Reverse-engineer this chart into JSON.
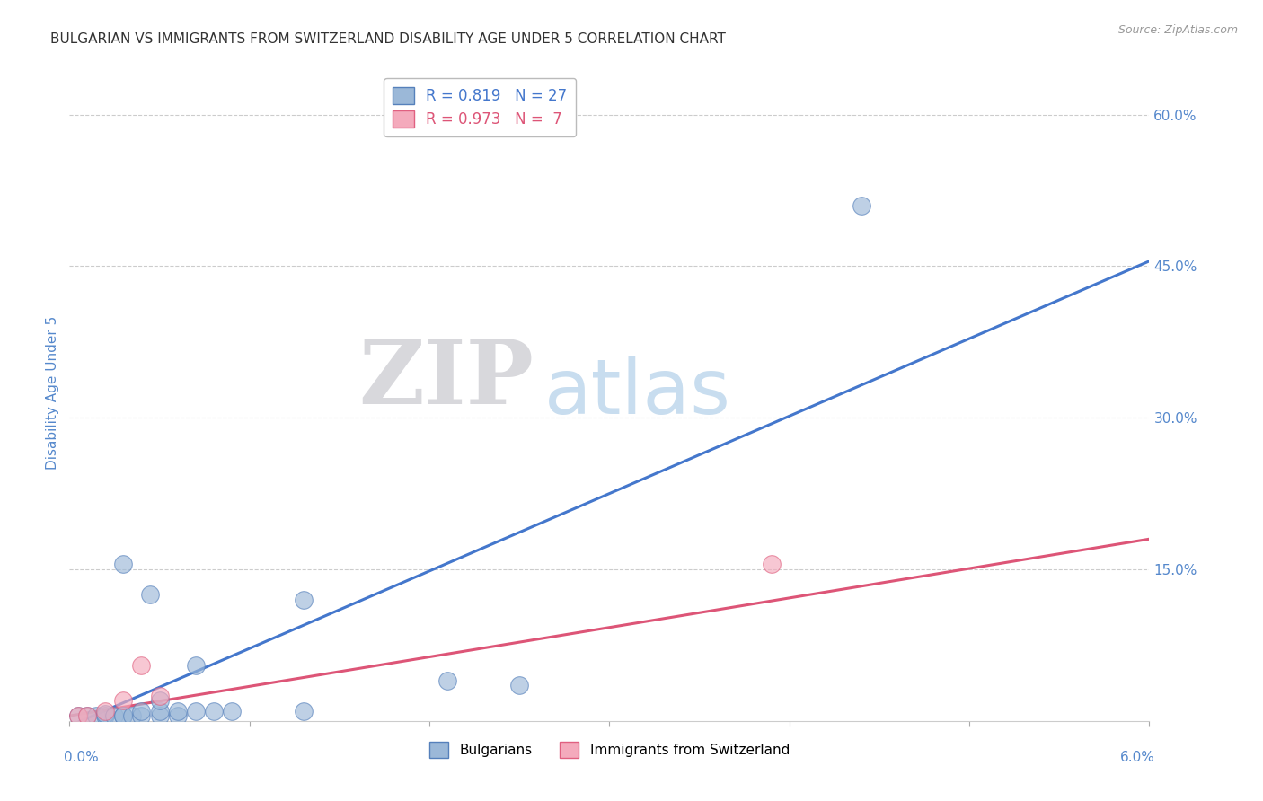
{
  "title": "BULGARIAN VS IMMIGRANTS FROM SWITZERLAND DISABILITY AGE UNDER 5 CORRELATION CHART",
  "source": "Source: ZipAtlas.com",
  "ylabel": "Disability Age Under 5",
  "xlim": [
    0.0,
    0.06
  ],
  "ylim": [
    0.0,
    0.65
  ],
  "xtick_positions": [
    0.0,
    0.01,
    0.02,
    0.03,
    0.04,
    0.05,
    0.06
  ],
  "yticks_right": [
    0.0,
    0.15,
    0.3,
    0.45,
    0.6
  ],
  "ytick_labels_right": [
    "",
    "15.0%",
    "30.0%",
    "45.0%",
    "60.0%"
  ],
  "blue_R": 0.819,
  "blue_N": 27,
  "pink_R": 0.973,
  "pink_N": 7,
  "blue_scatter_color": "#9BB8D8",
  "blue_edge_color": "#5580BB",
  "pink_scatter_color": "#F4AABC",
  "pink_edge_color": "#E06080",
  "blue_line_color": "#4477CC",
  "pink_line_color": "#DD5577",
  "legend_label_blue": "Bulgarians",
  "legend_label_pink": "Immigrants from Switzerland",
  "blue_scatter_x": [
    0.0005,
    0.001,
    0.0015,
    0.002,
    0.002,
    0.0025,
    0.003,
    0.003,
    0.0035,
    0.003,
    0.004,
    0.004,
    0.0045,
    0.005,
    0.005,
    0.005,
    0.006,
    0.006,
    0.007,
    0.007,
    0.008,
    0.009,
    0.013,
    0.013,
    0.021,
    0.025,
    0.044
  ],
  "blue_scatter_y": [
    0.005,
    0.005,
    0.005,
    0.005,
    0.007,
    0.005,
    0.005,
    0.005,
    0.005,
    0.155,
    0.005,
    0.01,
    0.125,
    0.005,
    0.01,
    0.02,
    0.005,
    0.01,
    0.01,
    0.055,
    0.01,
    0.01,
    0.12,
    0.01,
    0.04,
    0.035,
    0.51
  ],
  "pink_scatter_x": [
    0.0005,
    0.001,
    0.002,
    0.003,
    0.004,
    0.005,
    0.039
  ],
  "pink_scatter_y": [
    0.005,
    0.005,
    0.01,
    0.02,
    0.055,
    0.025,
    0.155
  ],
  "blue_line_x": [
    0.0,
    0.06
  ],
  "blue_line_y": [
    -0.005,
    0.455
  ],
  "pink_line_x": [
    0.0,
    0.06
  ],
  "pink_line_y": [
    0.005,
    0.18
  ],
  "watermark_zip": "ZIP",
  "watermark_atlas": "atlas",
  "zip_color": "#D8D8DC",
  "atlas_color": "#C8DDEF",
  "grid_color": "#CCCCCC",
  "title_fontsize": 11,
  "axis_label_color": "#5588CC",
  "tick_label_color": "#5588CC",
  "source_color": "#999999"
}
